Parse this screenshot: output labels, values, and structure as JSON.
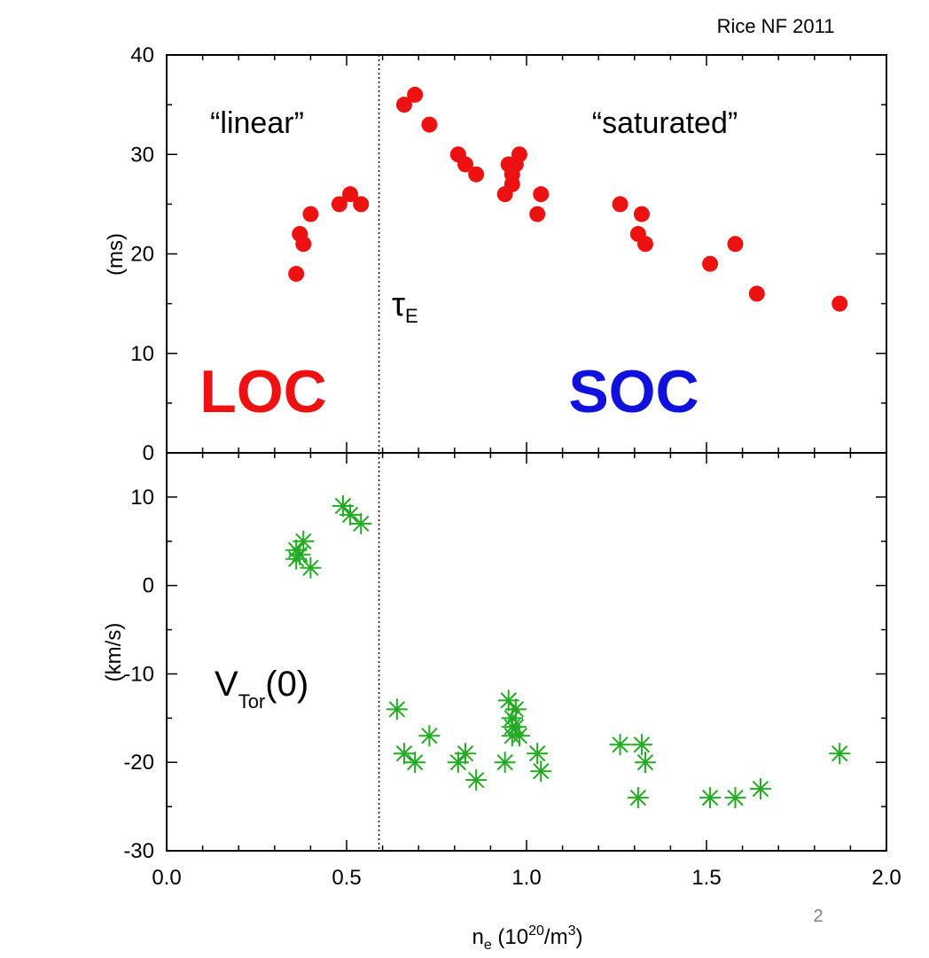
{
  "citation": "Rice NF 2011",
  "slide_number": "2",
  "colors": {
    "loc": "#ee1111",
    "soc": "#1111dd",
    "tau_points": "#ee1111",
    "vtor_points": "#22aa22"
  },
  "annotations": {
    "linear": "“linear”",
    "saturated": "“saturated”",
    "loc": "LOC",
    "soc": "SOC",
    "tau_symbol": "τ",
    "tau_sub": "E",
    "vtor_main": "V",
    "vtor_sub": "Tor",
    "vtor_arg": "(0)"
  },
  "chart_data": [
    {
      "type": "scatter",
      "ylabel": "(ms)",
      "xlim": [
        0.0,
        2.0
      ],
      "ylim": [
        0,
        40
      ],
      "yticks": [
        "0",
        "10",
        "20",
        "30",
        "40"
      ],
      "marker": "circle",
      "threshold_x": 0.59,
      "series": [
        {
          "x": [
            0.36,
            0.37,
            0.38,
            0.4,
            0.48,
            0.51,
            0.54,
            0.66,
            0.69,
            0.73,
            0.81,
            0.83,
            0.86,
            0.94,
            0.95,
            0.96,
            0.96,
            0.97,
            0.98,
            1.03,
            1.04,
            1.26,
            1.31,
            1.32,
            1.33,
            1.51,
            1.58,
            1.64,
            1.87
          ],
          "y": [
            18,
            22,
            21,
            24,
            25,
            26,
            25,
            35,
            36,
            33,
            30,
            29,
            28,
            26,
            29,
            27,
            28,
            29,
            30,
            24,
            26,
            25,
            22,
            24,
            21,
            19,
            21,
            16,
            15
          ]
        }
      ]
    },
    {
      "type": "scatter",
      "ylabel": "(km/s)",
      "xlabel": "n_e (10^20/m^3)",
      "xlabel_base": "n",
      "xlabel_sub": "e",
      "xlabel_rest": " (10",
      "xlabel_sup": "20",
      "xlabel_tail": "/m",
      "xlabel_sup2": "3",
      "xlabel_close": ")",
      "xlim": [
        0.0,
        2.0
      ],
      "ylim": [
        -30,
        15
      ],
      "xticks": [
        "0.0",
        "0.5",
        "1.0",
        "1.5",
        "2.0"
      ],
      "yticks": [
        "-30",
        "-20",
        "-10",
        "0",
        "10"
      ],
      "marker": "asterisk",
      "threshold_x": 0.59,
      "series": [
        {
          "x": [
            0.36,
            0.36,
            0.37,
            0.38,
            0.4,
            0.49,
            0.51,
            0.54,
            0.64,
            0.66,
            0.69,
            0.73,
            0.81,
            0.83,
            0.86,
            0.94,
            0.95,
            0.96,
            0.96,
            0.96,
            0.97,
            0.97,
            0.98,
            1.03,
            1.04,
            1.26,
            1.31,
            1.32,
            1.33,
            1.51,
            1.58,
            1.65,
            1.87
          ],
          "y": [
            4,
            3,
            3.5,
            5,
            2,
            9,
            8,
            7,
            -14,
            -19,
            -20,
            -17,
            -20,
            -19,
            -22,
            -20,
            -13,
            -16,
            -15,
            -17,
            -14,
            -16,
            -17,
            -19,
            -21,
            -18,
            -24,
            -18,
            -20,
            -24,
            -24,
            -23,
            -19
          ]
        }
      ]
    }
  ]
}
